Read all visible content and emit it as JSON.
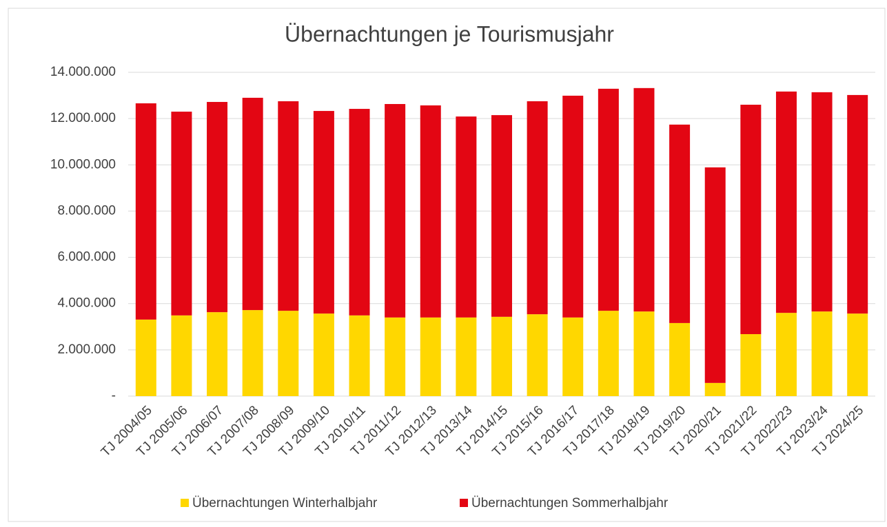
{
  "chart_data": {
    "type": "stacked_bar",
    "title": "Übernachtungen je Tourismusjahr",
    "categories": [
      "TJ 2004/05",
      "TJ 2005/06",
      "TJ 2006/07",
      "TJ 2007/08",
      "TJ 2008/09",
      "TJ 2009/10",
      "TJ 2010/11",
      "TJ 2011/12",
      "TJ 2012/13",
      "TJ 2013/14",
      "TJ 2014/15",
      "TJ 2015/16",
      "TJ 2016/17",
      "TJ 2017/18",
      "TJ 2018/19",
      "TJ 2019/20",
      "TJ 2020/21",
      "TJ 2021/22",
      "TJ 2022/23",
      "TJ 2023/24",
      "TJ 2024/25"
    ],
    "series": [
      {
        "name": "Übernachtungen Winterhalbjahr",
        "color": "#ffd700",
        "values": [
          3310000,
          3490000,
          3630000,
          3720000,
          3690000,
          3570000,
          3490000,
          3400000,
          3400000,
          3400000,
          3430000,
          3540000,
          3400000,
          3690000,
          3660000,
          3160000,
          570000,
          2680000,
          3600000,
          3660000,
          3570000
        ]
      },
      {
        "name": "Übernachtungen Sommerhalbjahr",
        "color": "#e30613",
        "values": [
          9350000,
          8810000,
          9090000,
          9180000,
          9060000,
          8760000,
          8930000,
          9230000,
          9170000,
          8690000,
          8720000,
          9210000,
          9590000,
          9600000,
          9660000,
          8580000,
          9320000,
          9920000,
          9570000,
          9480000,
          9450000
        ]
      }
    ],
    "ylim": [
      0,
      14000000
    ],
    "yticks": [
      {
        "value": 0,
        "label": "-"
      },
      {
        "value": 2000000,
        "label": "2.000.000"
      },
      {
        "value": 4000000,
        "label": "4.000.000"
      },
      {
        "value": 6000000,
        "label": "6.000.000"
      },
      {
        "value": 8000000,
        "label": "8.000.000"
      },
      {
        "value": 10000000,
        "label": "10.000.000"
      },
      {
        "value": 12000000,
        "label": "12.000.000"
      },
      {
        "value": 14000000,
        "label": "14.000.000"
      }
    ],
    "grid": true,
    "legend": "bottom"
  }
}
